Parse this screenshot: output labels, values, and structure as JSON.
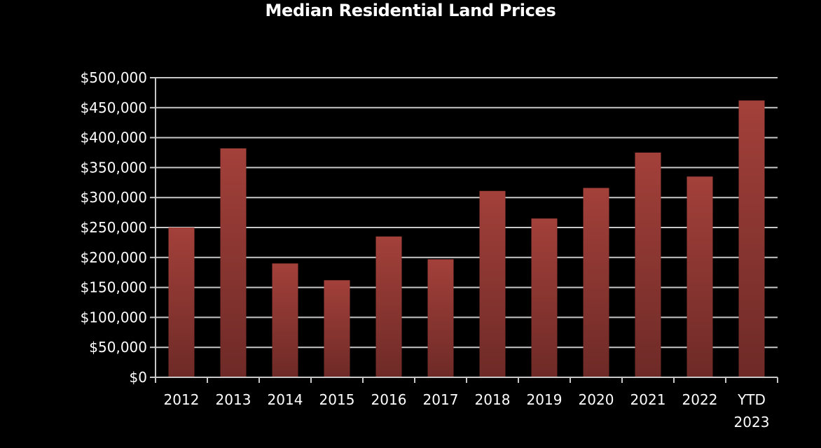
{
  "chart_data": {
    "type": "bar",
    "title": "Median Residential Land Prices",
    "xlabel": "",
    "ylabel": "",
    "categories": [
      "2012",
      "2013",
      "2014",
      "2015",
      "2016",
      "2017",
      "2018",
      "2019",
      "2020",
      "2021",
      "2022",
      "YTD 2023"
    ],
    "values": [
      250000,
      382000,
      190000,
      162000,
      235000,
      197000,
      311000,
      265000,
      316000,
      375000,
      335000,
      462000
    ],
    "ylim": [
      0,
      500000
    ],
    "yticks": [
      "$0",
      "$50,000",
      "$100,000",
      "$150,000",
      "$200,000",
      "$250,000",
      "$300,000",
      "$350,000",
      "$400,000",
      "$450,000",
      "$500,000"
    ],
    "grid": true,
    "legend": "none",
    "colors": {
      "background": "#000000",
      "bar_top": "#a3403a",
      "bar_bottom": "#6e2a27",
      "gridline": "#c8c8c8",
      "text": "#ffffff"
    }
  }
}
